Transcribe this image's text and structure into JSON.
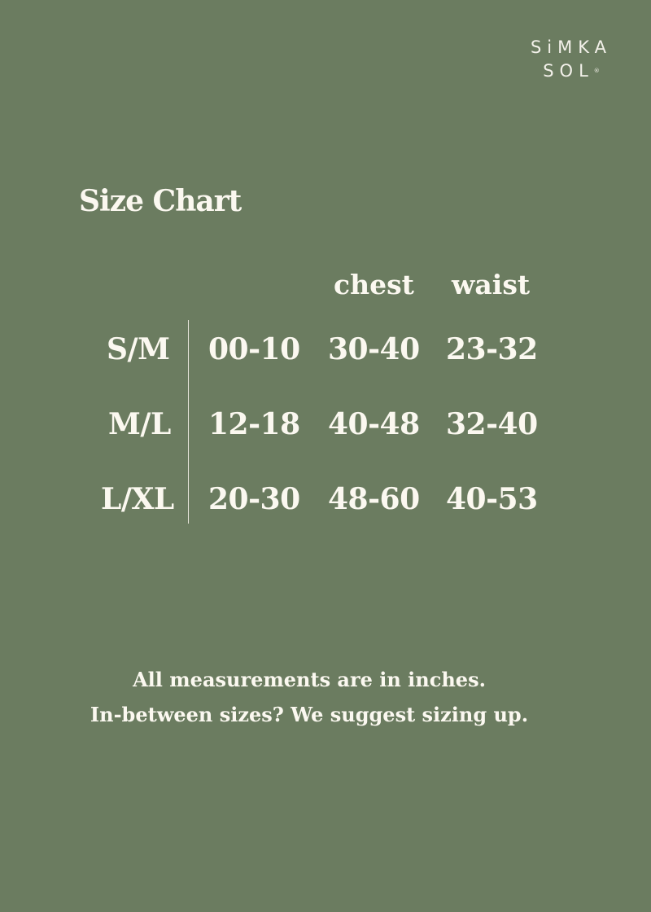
{
  "brand": {
    "line1": "SiMKA",
    "line2": "SOL",
    "mark": "®"
  },
  "title": "Size Chart",
  "columns": [
    "chest",
    "waist"
  ],
  "rows": [
    {
      "label": "S/M",
      "size": "00-10",
      "chest": "30-40",
      "waist": "23-32"
    },
    {
      "label": "M/L",
      "size": "12-18",
      "chest": "40-48",
      "waist": "32-40"
    },
    {
      "label": "L/XL",
      "size": "20-30",
      "chest": "48-60",
      "waist": "40-53"
    }
  ],
  "notes": [
    "All measurements are in inches.",
    "In-between sizes? We suggest sizing up."
  ],
  "colors": {
    "background": "#6b7c60",
    "text": "#fbf8f0"
  }
}
